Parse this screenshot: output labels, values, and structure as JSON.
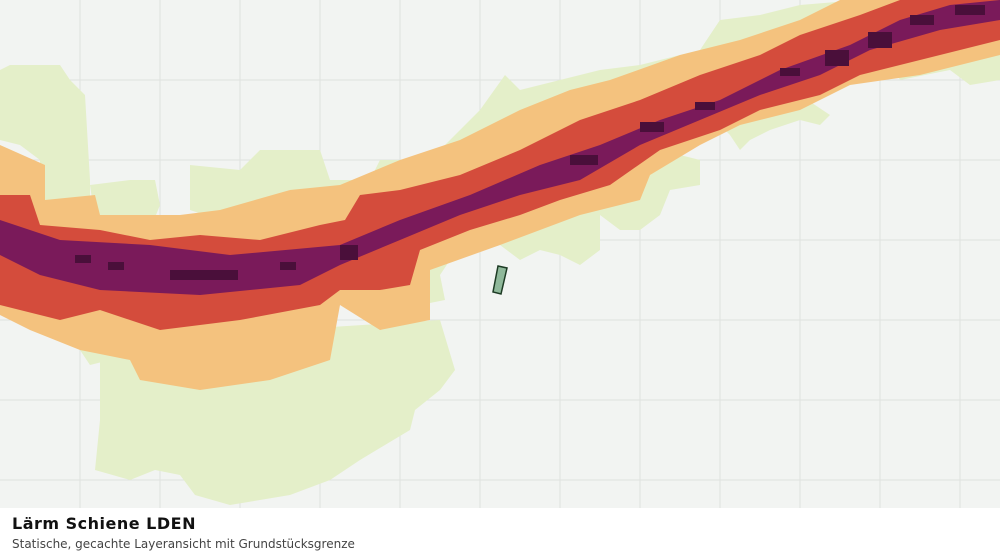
{
  "map": {
    "title": "Lärm Schiene LDEN",
    "subtitle": "Statische, gecachte Layeransicht mit Grundstücksgrenze"
  }
}
